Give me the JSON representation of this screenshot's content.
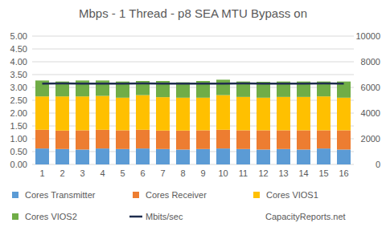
{
  "chart_data": {
    "type": "bar",
    "title": "Mbps - 1 Thread - p8 SEA MTU Bypass on",
    "annotation": "CapacityReports.net",
    "stacked": true,
    "grid": true,
    "legend": "bottom",
    "categories": [
      "1",
      "2",
      "3",
      "4",
      "5",
      "6",
      "7",
      "8",
      "9",
      "10",
      "11",
      "12",
      "13",
      "14",
      "15",
      "16"
    ],
    "ylim": [
      0,
      5
    ],
    "yticks": [
      {
        "value": 0,
        "label": "0.00"
      },
      {
        "value": 0.5,
        "label": "0.50"
      },
      {
        "value": 1,
        "label": "1.00"
      },
      {
        "value": 1.5,
        "label": "1.50"
      },
      {
        "value": 2,
        "label": "2.00"
      },
      {
        "value": 2.5,
        "label": "2.50"
      },
      {
        "value": 3,
        "label": "3.00"
      },
      {
        "value": 3.5,
        "label": "3.50"
      },
      {
        "value": 4,
        "label": "4.00"
      },
      {
        "value": 4.5,
        "label": "4.50"
      },
      {
        "value": 5,
        "label": "5.00"
      }
    ],
    "y2lim": [
      0,
      10000
    ],
    "y2ticks": [
      0,
      2000,
      4000,
      6000,
      8000,
      10000
    ],
    "series": [
      {
        "name": "Cores Transmitter",
        "color": "#5b9bd5",
        "values": [
          0.62,
          0.6,
          0.58,
          0.62,
          0.6,
          0.62,
          0.6,
          0.58,
          0.6,
          0.62,
          0.6,
          0.58,
          0.6,
          0.58,
          0.62,
          0.58
        ]
      },
      {
        "name": "Cores Receiver",
        "color": "#ed7d31",
        "values": [
          0.73,
          0.72,
          0.75,
          0.73,
          0.73,
          0.73,
          0.72,
          0.74,
          0.73,
          0.73,
          0.73,
          0.75,
          0.73,
          0.75,
          0.71,
          0.75
        ]
      },
      {
        "name": "Cores VIOS1",
        "color": "#ffc000",
        "values": [
          1.3,
          1.33,
          1.32,
          1.32,
          1.27,
          1.35,
          1.3,
          1.28,
          1.27,
          1.35,
          1.3,
          1.27,
          1.3,
          1.3,
          1.32,
          1.27
        ]
      },
      {
        "name": "Cores VIOS2",
        "color": "#70ad47",
        "values": [
          0.62,
          0.58,
          0.62,
          0.6,
          0.63,
          0.55,
          0.63,
          0.6,
          0.65,
          0.6,
          0.6,
          0.62,
          0.6,
          0.6,
          0.58,
          0.63
        ]
      },
      {
        "name": "Mbits/sec",
        "color": "#1f2d4d",
        "type": "line",
        "axis": "y2",
        "values": [
          6300,
          6310,
          6300,
          6290,
          6300,
          6310,
          6300,
          6290,
          6300,
          6300,
          6310,
          6300,
          6290,
          6300,
          6310,
          6300
        ]
      }
    ]
  }
}
